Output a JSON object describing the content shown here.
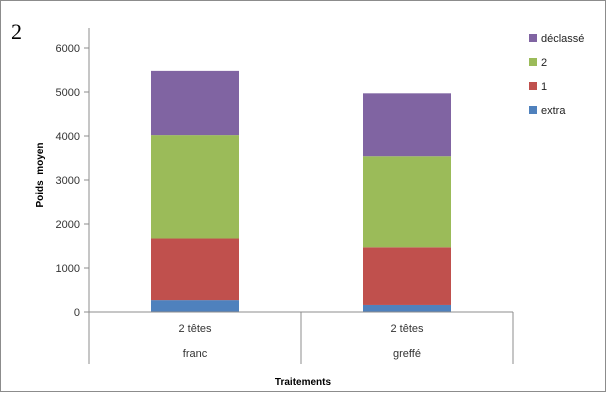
{
  "panel_label": "2",
  "chart_data": {
    "type": "bar",
    "stacked": true,
    "xlabel": "Traitements",
    "ylabel": "Poids  moyen",
    "ylim": [
      0,
      6000
    ],
    "yticks": [
      0,
      1000,
      2000,
      3000,
      4000,
      5000,
      6000
    ],
    "grid": false,
    "legend_position": "top-right",
    "categories": [
      {
        "sub": "2 têtes",
        "group": "franc"
      },
      {
        "sub": "2 têtes",
        "group": "greffé"
      }
    ],
    "series": [
      {
        "name": "extra",
        "color": "#4f81bd",
        "values": [
          270,
          160
        ]
      },
      {
        "name": "1",
        "color": "#c0504d",
        "values": [
          1400,
          1310
        ]
      },
      {
        "name": "2",
        "color": "#9bbb59",
        "values": [
          2350,
          2070
        ]
      },
      {
        "name": "déclassé",
        "color": "#8064a2",
        "values": [
          1460,
          1430
        ]
      }
    ]
  }
}
